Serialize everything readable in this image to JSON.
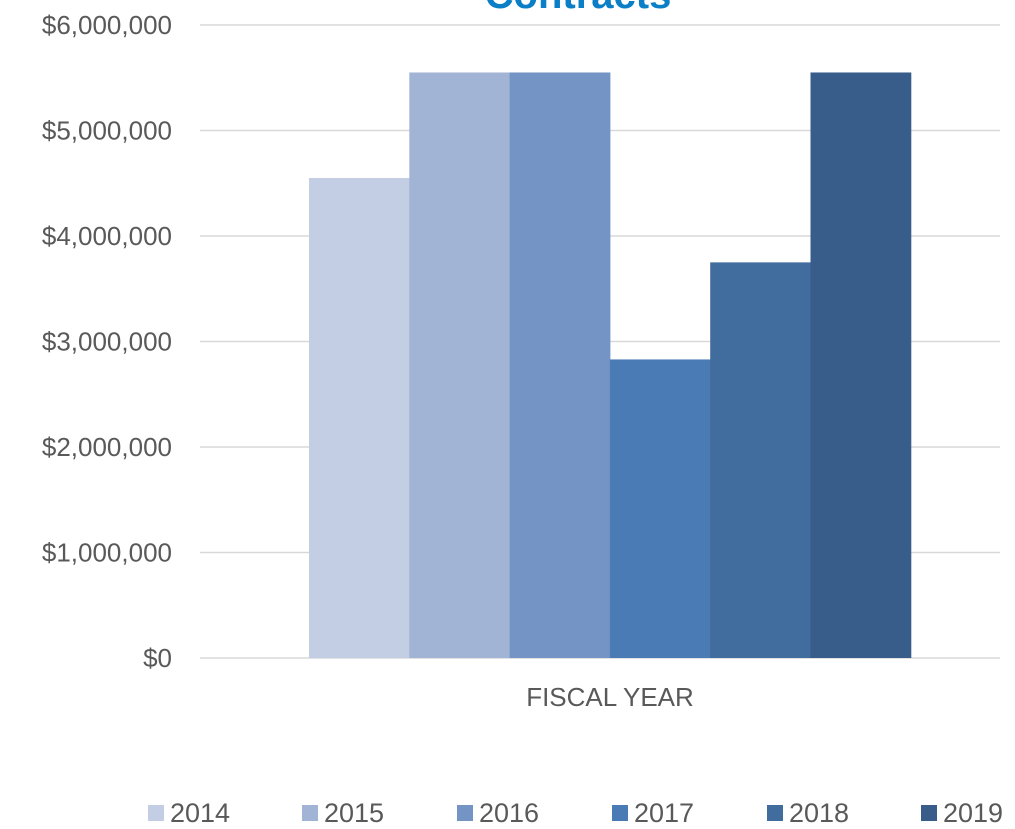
{
  "chart_data": {
    "type": "bar",
    "title": "Contracts",
    "categories": [
      "FISCAL YEAR"
    ],
    "series": [
      {
        "name": "2014",
        "color": "#c3cde3",
        "values": [
          4550000
        ]
      },
      {
        "name": "2015",
        "color": "#a2b4d5",
        "values": [
          5550000
        ]
      },
      {
        "name": "2016",
        "color": "#7494c5",
        "values": [
          5550000
        ]
      },
      {
        "name": "2017",
        "color": "#4a7bb5",
        "values": [
          2830000
        ]
      },
      {
        "name": "2018",
        "color": "#416c9e",
        "values": [
          3750000
        ]
      },
      {
        "name": "2019",
        "color": "#385d8a",
        "values": [
          5550000
        ]
      }
    ],
    "ylim": [
      0,
      6000000
    ],
    "yticks": [
      "$0",
      "$1,000,000",
      "$2,000,000",
      "$3,000,000",
      "$4,000,000",
      "$5,000,000",
      "$6,000,000"
    ],
    "ytick_values": [
      0,
      1000000,
      2000000,
      3000000,
      4000000,
      5000000,
      6000000
    ],
    "grid": true,
    "legend_position": "bottom"
  }
}
